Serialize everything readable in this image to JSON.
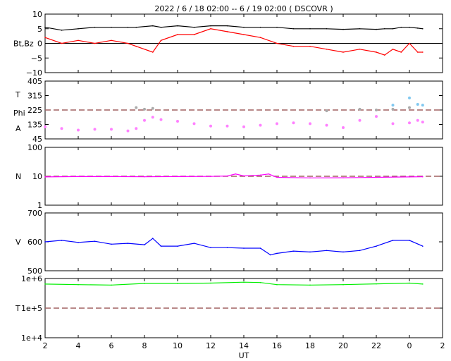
{
  "title": "2022 /  6 / 18   02:00  --  6 / 19   02:00 ( DSCOVR )",
  "x_axis": {
    "label": "UT",
    "ticks": [
      "2",
      "4",
      "6",
      "8",
      "10",
      "12",
      "14",
      "16",
      "18",
      "20",
      "22",
      "0",
      "2"
    ]
  },
  "chart_data": [
    {
      "type": "line",
      "panel": "magnetic-field",
      "ylabel": "Bt,Bz",
      "ylim": [
        -10,
        10
      ],
      "yticks": [
        "10",
        "5",
        "0",
        "−5",
        "−10"
      ],
      "reference_line": 0,
      "x_hours": [
        2,
        3,
        4,
        5,
        6,
        7,
        7.5,
        8.5,
        9,
        10,
        11,
        12,
        13,
        14,
        15,
        16,
        17,
        18,
        19,
        20,
        21,
        22,
        22.5,
        23,
        23.5,
        24,
        24.5,
        24.8
      ],
      "series": [
        {
          "color": "#000000",
          "values": [
            5.5,
            4.5,
            5,
            5.5,
            5.5,
            5.5,
            5.5,
            6,
            5.5,
            6,
            5.5,
            6,
            6,
            5.5,
            5.5,
            5.5,
            5,
            5,
            5,
            4.8,
            5,
            4.8,
            5,
            5,
            5.5,
            5.5,
            5.2,
            5
          ]
        },
        {
          "color": "#ff0000",
          "values": [
            2,
            0,
            1,
            0,
            1,
            0,
            -1,
            -3,
            1,
            3,
            3,
            5,
            4,
            3,
            2,
            0,
            -1,
            -1,
            -2,
            -3,
            -2,
            -3,
            -4,
            -2,
            -3,
            0,
            -3,
            -3
          ]
        }
      ]
    },
    {
      "type": "scatter",
      "panel": "angles",
      "ylabels": [
        "T",
        "Phi",
        "A"
      ],
      "ylim": [
        45,
        405
      ],
      "yticks": [
        "405",
        "315",
        "225",
        "135",
        "45"
      ],
      "reference_line": 225,
      "x_hours": [
        2,
        3,
        4,
        5,
        6,
        7,
        7.5,
        8,
        8.5,
        9,
        10,
        11,
        12,
        13,
        14,
        15,
        16,
        17,
        18,
        19,
        20,
        21,
        22,
        23,
        24,
        24.5,
        24.8
      ],
      "series": [
        {
          "color": "#ff80ff",
          "values": [
            120,
            110,
            100,
            105,
            105,
            95,
            110,
            160,
            180,
            165,
            155,
            140,
            125,
            125,
            120,
            130,
            140,
            145,
            140,
            130,
            115,
            160,
            185,
            140,
            145,
            160,
            150
          ]
        },
        {
          "color": "#aaaaaa",
          "values": [
            null,
            null,
            null,
            null,
            null,
            null,
            240,
            230,
            235,
            null,
            null,
            null,
            null,
            null,
            null,
            null,
            null,
            null,
            null,
            220,
            null,
            230,
            225,
            230,
            240,
            null,
            null
          ]
        },
        {
          "color": "#80c8f0",
          "values": [
            null,
            null,
            null,
            null,
            null,
            null,
            null,
            null,
            null,
            null,
            null,
            null,
            null,
            null,
            null,
            null,
            null,
            null,
            null,
            null,
            null,
            null,
            null,
            255,
            300,
            260,
            255
          ]
        }
      ]
    },
    {
      "type": "line",
      "panel": "density",
      "ylabel": "N",
      "scale": "log",
      "ylim": [
        1,
        100
      ],
      "yticks": [
        "100",
        "10",
        "1"
      ],
      "reference_line": 10,
      "x_hours": [
        2,
        4,
        6,
        8,
        10,
        12,
        13,
        13.5,
        14,
        15,
        15.5,
        16,
        18,
        20,
        22,
        24,
        24.8
      ],
      "series": [
        {
          "color": "#ff00ff",
          "values": [
            9.5,
            9.8,
            9.8,
            9.6,
            9.8,
            9.9,
            10.2,
            12,
            10.3,
            11,
            12,
            9.2,
            8.8,
            8.9,
            9.2,
            9.5,
            9.6
          ]
        }
      ]
    },
    {
      "type": "line",
      "panel": "velocity",
      "ylabel": "V",
      "ylim": [
        500,
        700
      ],
      "yticks": [
        "700",
        "600",
        "500"
      ],
      "x_hours": [
        2,
        3,
        4,
        5,
        6,
        7,
        8,
        8.5,
        9,
        10,
        11,
        12,
        13,
        14,
        15,
        15.6,
        16,
        17,
        18,
        19,
        20,
        21,
        22,
        23,
        24,
        24.8
      ],
      "series": [
        {
          "color": "#0000ff",
          "values": [
            600,
            605,
            598,
            602,
            592,
            595,
            590,
            612,
            585,
            585,
            595,
            580,
            580,
            578,
            578,
            555,
            560,
            568,
            565,
            570,
            565,
            570,
            585,
            605,
            605,
            585
          ]
        }
      ]
    },
    {
      "type": "line",
      "panel": "temperature",
      "ylabel": "T",
      "scale": "log",
      "ylim": [
        10000,
        1000000
      ],
      "yticks": [
        "1e+6",
        "1e+5",
        "1e+4"
      ],
      "reference_line": 100000,
      "x_hours": [
        2,
        4,
        6,
        8,
        10,
        12,
        14,
        15,
        16,
        18,
        20,
        22,
        24,
        24.8
      ],
      "series": [
        {
          "color": "#00ee00",
          "values": [
            650000,
            620000,
            600000,
            680000,
            680000,
            700000,
            750000,
            730000,
            620000,
            600000,
            620000,
            660000,
            700000,
            650000
          ]
        }
      ]
    }
  ]
}
